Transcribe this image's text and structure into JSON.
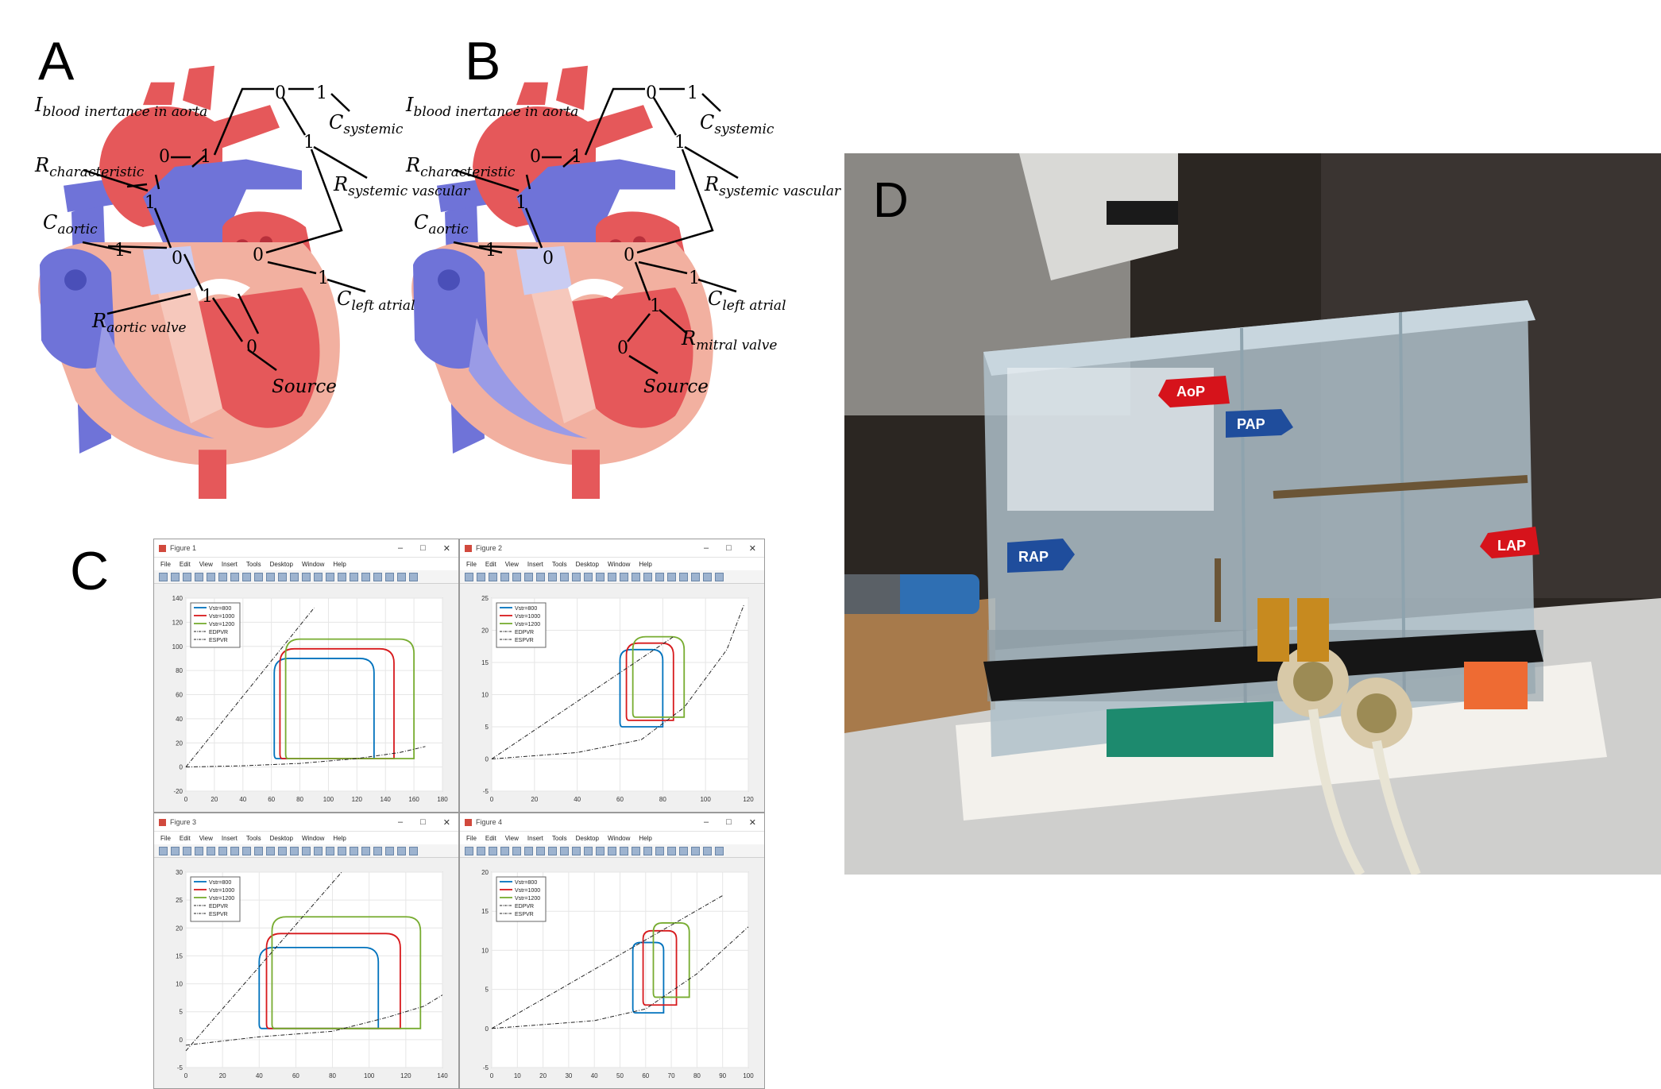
{
  "panels": {
    "A": "A",
    "B": "B",
    "C": "C",
    "D": "D"
  },
  "bond_graph_A": {
    "labels": {
      "inertance": "I",
      "inertance_sub": "blood inertance in aorta",
      "characteristic": "R",
      "characteristic_sub": "characteristic",
      "aortic": "C",
      "aortic_sub": "aortic",
      "aortic_valve": "R",
      "aortic_valve_sub": "aortic valve",
      "systemic": "C",
      "systemic_sub": "systemic",
      "systemic_vascular": "R",
      "systemic_vascular_sub": "systemic vascular",
      "left_atrial": "C",
      "left_atrial_sub": "left atrial",
      "source": "Source"
    },
    "junctions": [
      "0",
      "1",
      "0",
      "1",
      "1",
      "1",
      "0",
      "1",
      "0",
      "1",
      "0"
    ]
  },
  "bond_graph_B": {
    "labels": {
      "inertance": "I",
      "inertance_sub": "blood inertance in aorta",
      "characteristic": "R",
      "characteristic_sub": "characteristic",
      "aortic": "C",
      "aortic_sub": "aortic",
      "mitral_valve": "R",
      "mitral_valve_sub": "mitral valve",
      "systemic": "C",
      "systemic_sub": "systemic",
      "systemic_vascular": "R",
      "systemic_vascular_sub": "systemic vascular",
      "left_atrial": "C",
      "left_atrial_sub": "left atrial",
      "source": "Source"
    },
    "junctions": [
      "0",
      "1",
      "0",
      "1",
      "1",
      "1",
      "0",
      "1",
      "0",
      "1",
      "0"
    ]
  },
  "figure_windows": [
    {
      "title": "Figure 1"
    },
    {
      "title": "Figure 2"
    },
    {
      "title": "Figure 3"
    },
    {
      "title": "Figure 4"
    }
  ],
  "menu": [
    "File",
    "Edit",
    "View",
    "Insert",
    "Tools",
    "Desktop",
    "Window",
    "Help"
  ],
  "window_buttons": [
    "–",
    "□",
    "✕"
  ],
  "legend": [
    "Vstr=800",
    "Vstr=1000",
    "Vstr=1200",
    "EDPVR",
    "ESPVR"
  ],
  "colors": {
    "s800": "#0072bd",
    "s1000": "#d7191c",
    "s1200": "#77ac30",
    "heart_red": "#e5585a",
    "heart_blue": "#6f73d8",
    "heart_pink": "#f2b0a0"
  },
  "chart_data": [
    {
      "type": "line",
      "title": "",
      "xlim": [
        0,
        180
      ],
      "ylim": [
        -20,
        140
      ],
      "xticks": [
        "0",
        "20",
        "40",
        "60",
        "80",
        "100",
        "120",
        "140",
        "160",
        "180"
      ],
      "yticks": [
        "-20",
        "0",
        "20",
        "40",
        "60",
        "80",
        "100",
        "120",
        "140"
      ],
      "series": [
        {
          "name": "Vstr=800",
          "loop": {
            "x0": 62,
            "x1": 132,
            "ptop": 90,
            "pbottom": 7
          }
        },
        {
          "name": "Vstr=1000",
          "loop": {
            "x0": 66,
            "x1": 146,
            "ptop": 98,
            "pbottom": 7
          }
        },
        {
          "name": "Vstr=1200",
          "loop": {
            "x0": 70,
            "x1": 160,
            "ptop": 106,
            "pbottom": 7
          }
        },
        {
          "name": "EDPVR",
          "x": [
            0,
            40,
            80,
            120,
            150,
            168
          ],
          "y": [
            0,
            1,
            3,
            7,
            12,
            17
          ]
        },
        {
          "name": "ESPVR",
          "x": [
            0,
            90
          ],
          "y": [
            0,
            132
          ]
        }
      ]
    },
    {
      "type": "line",
      "title": "",
      "xlim": [
        0,
        120
      ],
      "ylim": [
        -5,
        25
      ],
      "xticks": [
        "0",
        "20",
        "40",
        "60",
        "80",
        "100",
        "120"
      ],
      "yticks": [
        "-5",
        "0",
        "5",
        "10",
        "15",
        "20",
        "25"
      ],
      "series": [
        {
          "name": "Vstr=800",
          "loop": {
            "x0": 60,
            "x1": 80,
            "ptop": 17,
            "pbottom": 5
          }
        },
        {
          "name": "Vstr=1000",
          "loop": {
            "x0": 63,
            "x1": 85,
            "ptop": 18,
            "pbottom": 6
          }
        },
        {
          "name": "Vstr=1200",
          "loop": {
            "x0": 66,
            "x1": 90,
            "ptop": 19,
            "pbottom": 6.5
          }
        },
        {
          "name": "EDPVR",
          "x": [
            0,
            40,
            70,
            90,
            110,
            118
          ],
          "y": [
            0,
            1,
            3,
            8,
            17,
            24
          ]
        },
        {
          "name": "ESPVR",
          "x": [
            0,
            85
          ],
          "y": [
            0,
            19
          ]
        }
      ]
    },
    {
      "type": "line",
      "title": "",
      "xlim": [
        0,
        140
      ],
      "ylim": [
        -5,
        30
      ],
      "xticks": [
        "0",
        "20",
        "40",
        "60",
        "80",
        "100",
        "120",
        "140"
      ],
      "yticks": [
        "-5",
        "0",
        "5",
        "10",
        "15",
        "20",
        "25",
        "30"
      ],
      "series": [
        {
          "name": "Vstr=800",
          "loop": {
            "x0": 40,
            "x1": 105,
            "ptop": 16.5,
            "pbottom": 2
          }
        },
        {
          "name": "Vstr=1000",
          "loop": {
            "x0": 44,
            "x1": 117,
            "ptop": 19,
            "pbottom": 2
          }
        },
        {
          "name": "Vstr=1200",
          "loop": {
            "x0": 47,
            "x1": 128,
            "ptop": 22,
            "pbottom": 2
          }
        },
        {
          "name": "EDPVR",
          "x": [
            0,
            40,
            80,
            110,
            130,
            140
          ],
          "y": [
            -1,
            0.5,
            1.5,
            4,
            6,
            8
          ]
        },
        {
          "name": "ESPVR",
          "x": [
            0,
            85
          ],
          "y": [
            -2,
            30
          ]
        }
      ]
    },
    {
      "type": "line",
      "title": "",
      "xlim": [
        0,
        100
      ],
      "ylim": [
        -5,
        20
      ],
      "xticks": [
        "0",
        "10",
        "20",
        "30",
        "40",
        "50",
        "60",
        "70",
        "80",
        "90",
        "100"
      ],
      "yticks": [
        "-5",
        "0",
        "5",
        "10",
        "15",
        "20"
      ],
      "series": [
        {
          "name": "Vstr=800",
          "loop": {
            "x0": 55,
            "x1": 67,
            "ptop": 11,
            "pbottom": 2
          }
        },
        {
          "name": "Vstr=1000",
          "loop": {
            "x0": 59,
            "x1": 72,
            "ptop": 12.5,
            "pbottom": 3
          }
        },
        {
          "name": "Vstr=1200",
          "loop": {
            "x0": 63,
            "x1": 77,
            "ptop": 13.5,
            "pbottom": 4
          }
        },
        {
          "name": "EDPVR",
          "x": [
            0,
            40,
            60,
            80,
            90,
            100
          ],
          "y": [
            0,
            1,
            2.5,
            7,
            10,
            13
          ]
        },
        {
          "name": "ESPVR",
          "x": [
            0,
            90
          ],
          "y": [
            0,
            17
          ]
        }
      ]
    }
  ],
  "photo": {
    "tags": [
      "AoP",
      "PAP",
      "RAP",
      "LAP"
    ],
    "tag_colors": {
      "AoP": "#d6131b",
      "PAP": "#1f4d9c",
      "RAP": "#1f4d9c",
      "LAP": "#d6131b"
    }
  }
}
